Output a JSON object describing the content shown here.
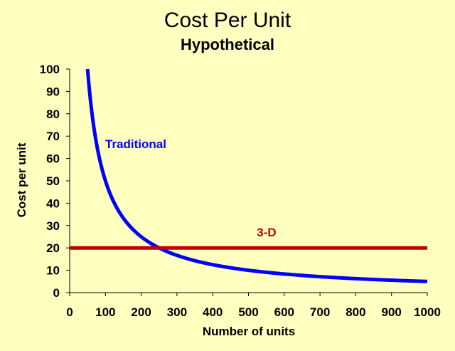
{
  "chart_data": {
    "type": "line",
    "title": "Cost Per Unit",
    "subtitle": "Hypothetical",
    "xlabel": "Number of units",
    "ylabel": "Cost per unit",
    "xlim": [
      0,
      1000
    ],
    "ylim": [
      0,
      100
    ],
    "xticks": [
      0,
      100,
      200,
      300,
      400,
      500,
      600,
      700,
      800,
      900,
      1000
    ],
    "yticks": [
      0,
      10,
      20,
      30,
      40,
      50,
      60,
      70,
      80,
      90,
      100
    ],
    "grid": false,
    "legend": "none",
    "series": [
      {
        "name": "Traditional",
        "color": "#0000FF",
        "x": [
          50,
          60,
          75,
          100,
          125,
          150,
          200,
          250,
          300,
          400,
          500,
          600,
          700,
          800,
          900,
          1000
        ],
        "y": [
          100,
          83.3,
          66.7,
          50,
          40,
          33.3,
          25,
          20,
          16.7,
          12.5,
          10,
          8.3,
          7.1,
          6.3,
          5.6,
          5
        ]
      },
      {
        "name": "3-D",
        "color": "#C00000",
        "x": [
          0,
          1000
        ],
        "y": [
          20,
          20
        ]
      }
    ]
  }
}
